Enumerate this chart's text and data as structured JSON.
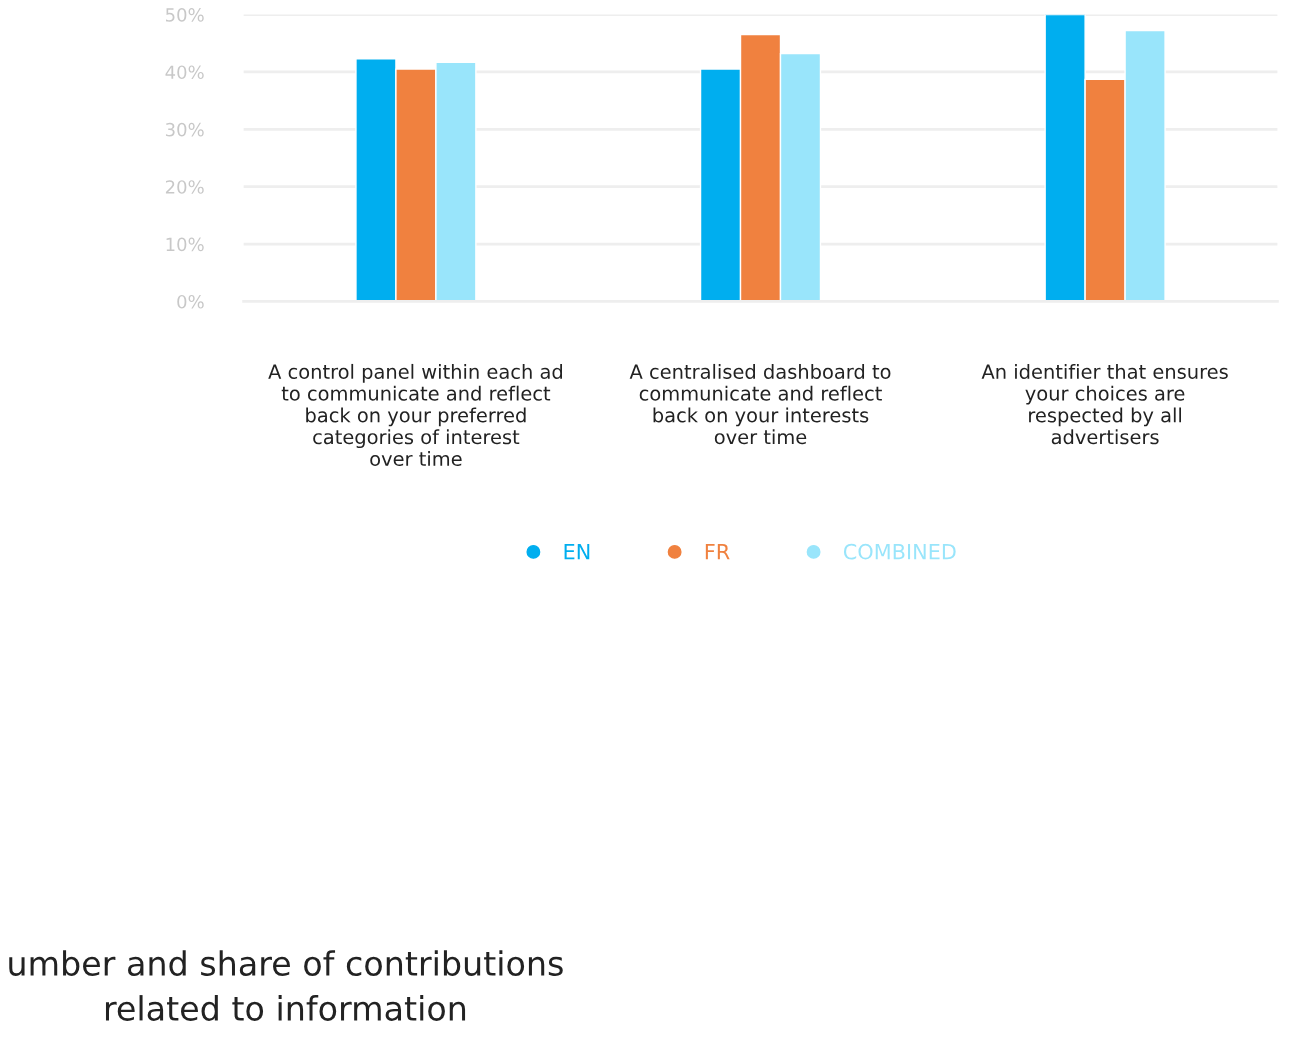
{
  "chart_data": {
    "type": "bar",
    "categories": [
      "A control panel within each ad\nto communicate and reflect\nback on your preferred\ncategories of interest\nover time",
      "A centralised dashboard to\ncommunicate and reflect\nback on your interests\nover time",
      "An identifier that ensures\nyour choices are\nrespected by all\nadvertisers"
    ],
    "series": [
      {
        "name": "EN",
        "color": "#00aeef",
        "values": [
          42.3,
          40.5,
          50
        ]
      },
      {
        "name": "FR",
        "color": "#f0813f",
        "values": [
          40.5,
          46.5,
          38.7
        ]
      },
      {
        "name": "COMBINED",
        "color": "#99e5fb",
        "values": [
          41.7,
          43.2,
          47.2
        ]
      }
    ],
    "ylim": [
      0,
      50
    ],
    "yticks": [
      {
        "value": 0,
        "label": "0%"
      },
      {
        "value": 10,
        "label": "10%"
      },
      {
        "value": 20,
        "label": "20%"
      },
      {
        "value": 30,
        "label": "30%"
      },
      {
        "value": 40,
        "label": "40%"
      },
      {
        "value": 50,
        "label": "50%"
      }
    ],
    "grid": "y",
    "legend": "bottom",
    "annotations": [
      "umber and share of contributions\nrelated to information"
    ]
  }
}
